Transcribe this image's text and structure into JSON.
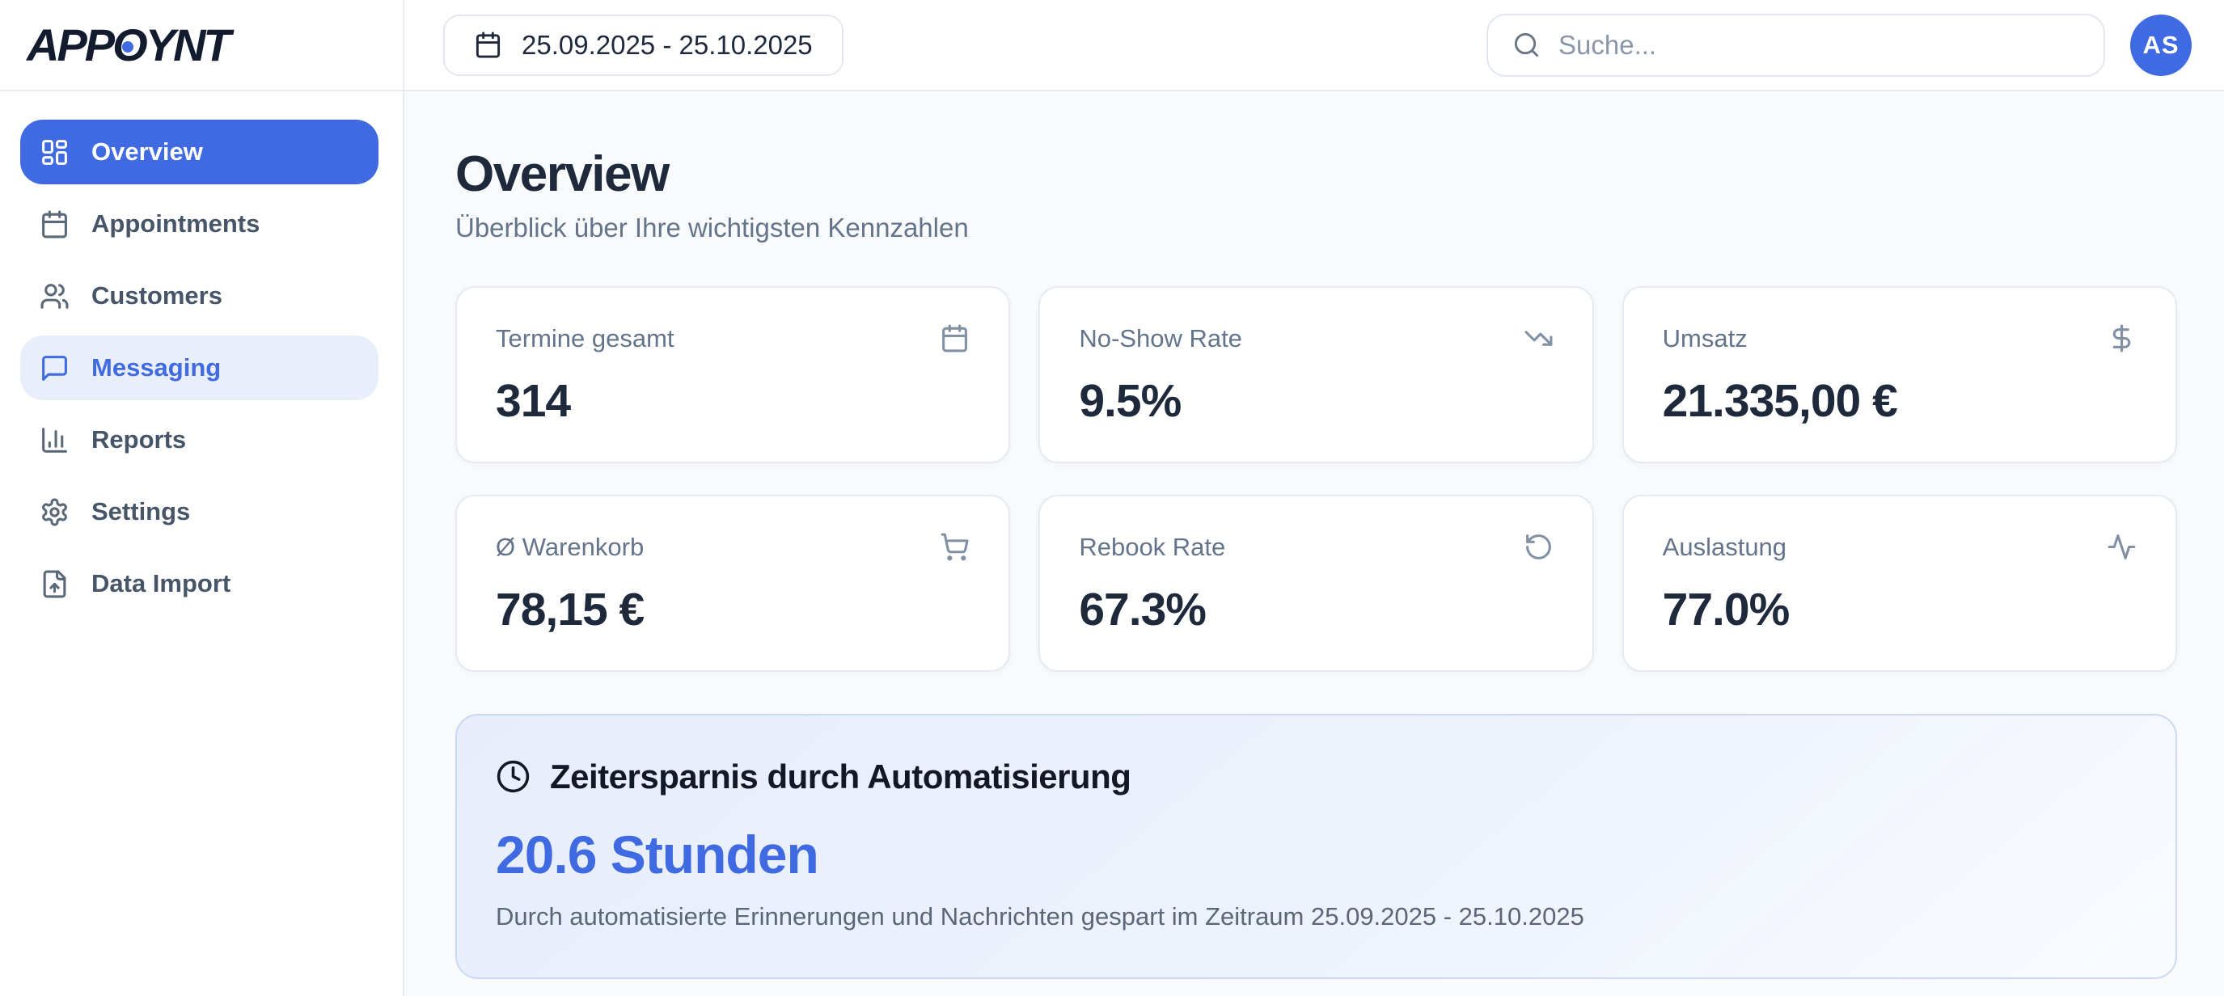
{
  "colors": {
    "accent": "#3f6ae1",
    "accent_soft": "#e9eefb",
    "main_bg": "#f8fafc"
  },
  "brand": {
    "logo_prefix": "APP",
    "logo_o": "O",
    "logo_suffix": "YNT"
  },
  "header": {
    "date_range": "25.09.2025 - 25.10.2025",
    "search_placeholder": "Suche...",
    "avatar_initials": "AS"
  },
  "sidebar": {
    "items": [
      {
        "label": "Overview",
        "icon": "layout-dashboard",
        "state": "active"
      },
      {
        "label": "Appointments",
        "icon": "calendar",
        "state": "default"
      },
      {
        "label": "Customers",
        "icon": "users",
        "state": "default"
      },
      {
        "label": "Messaging",
        "icon": "message-square",
        "state": "highlighted"
      },
      {
        "label": "Reports",
        "icon": "bar-chart",
        "state": "default"
      },
      {
        "label": "Settings",
        "icon": "settings",
        "state": "default"
      },
      {
        "label": "Data Import",
        "icon": "file-up",
        "state": "default"
      }
    ]
  },
  "page": {
    "title": "Overview",
    "subtitle": "Überblick über Ihre wichtigsten Kennzahlen"
  },
  "kpi_cards": [
    {
      "label": "Termine gesamt",
      "value": "314",
      "icon": "calendar"
    },
    {
      "label": "No-Show Rate",
      "value": "9.5%",
      "icon": "trending-down"
    },
    {
      "label": "Umsatz",
      "value": "21.335,00 €",
      "icon": "dollar-sign"
    },
    {
      "label": "Ø Warenkorb",
      "value": "78,15 €",
      "icon": "shopping-cart"
    },
    {
      "label": "Rebook Rate",
      "value": "67.3%",
      "icon": "rotate-ccw"
    },
    {
      "label": "Auslastung",
      "value": "77.0%",
      "icon": "activity"
    }
  ],
  "time_saved_card": {
    "icon": "clock",
    "title": "Zeitersparnis durch Automatisierung",
    "value": "20.6 Stunden",
    "description": "Durch automatisierte Erinnerungen und Nachrichten gespart im Zeitraum 25.09.2025 - 25.10.2025"
  }
}
